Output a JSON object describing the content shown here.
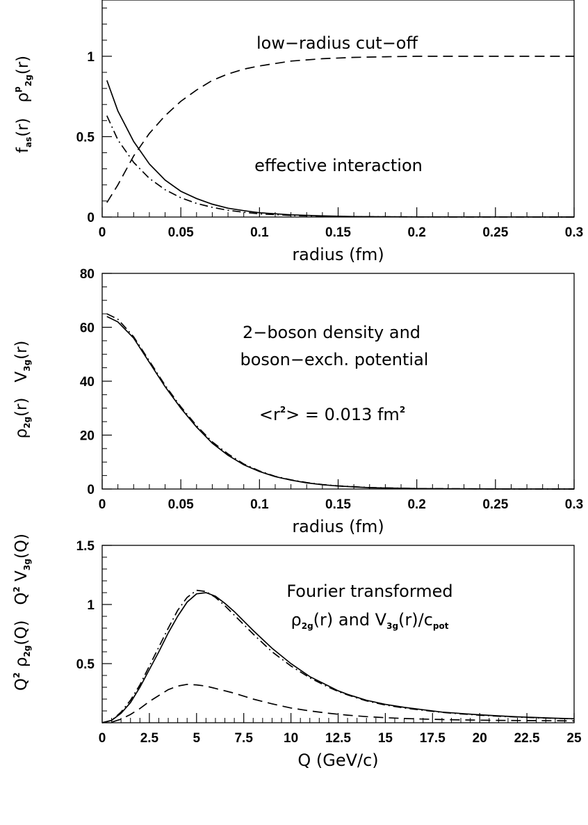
{
  "chart_data": [
    {
      "type": "line",
      "xlabel": "radius (fm)",
      "ylabel_parts": {
        "left": "f",
        "left_sub": "as",
        "left_arg": "(r)",
        "right": "ρ",
        "right_sup": "p",
        "right_sub": "2g",
        "right_arg": "(r)"
      },
      "xlim": [
        0,
        0.3
      ],
      "ylim": [
        0,
        1.35
      ],
      "xticks": [
        0,
        0.05,
        0.1,
        0.15,
        0.2,
        0.25,
        0.3
      ],
      "xtick_labels": [
        "0",
        "0.05",
        "0.1",
        "0.15",
        "0.2",
        "0.25",
        "0.3"
      ],
      "yticks": [
        0,
        0.5,
        1
      ],
      "ytick_labels": [
        "0",
        "0.5",
        "1"
      ],
      "annotations": [
        "low−radius cut−off",
        "effective interaction"
      ],
      "series": [
        {
          "style": "dashed",
          "points": [
            [
              0.003,
              0.09
            ],
            [
              0.01,
              0.2
            ],
            [
              0.02,
              0.38
            ],
            [
              0.03,
              0.52
            ],
            [
              0.04,
              0.63
            ],
            [
              0.05,
              0.72
            ],
            [
              0.06,
              0.79
            ],
            [
              0.07,
              0.85
            ],
            [
              0.08,
              0.89
            ],
            [
              0.09,
              0.92
            ],
            [
              0.1,
              0.94
            ],
            [
              0.12,
              0.97
            ],
            [
              0.14,
              0.985
            ],
            [
              0.16,
              0.993
            ],
            [
              0.18,
              0.997
            ],
            [
              0.2,
              1.0
            ],
            [
              0.25,
              1.0
            ],
            [
              0.3,
              1.0
            ]
          ]
        },
        {
          "style": "solid",
          "points": [
            [
              0.003,
              0.85
            ],
            [
              0.01,
              0.66
            ],
            [
              0.02,
              0.47
            ],
            [
              0.03,
              0.33
            ],
            [
              0.04,
              0.23
            ],
            [
              0.05,
              0.16
            ],
            [
              0.06,
              0.115
            ],
            [
              0.07,
              0.08
            ],
            [
              0.08,
              0.055
            ],
            [
              0.09,
              0.04
            ],
            [
              0.1,
              0.027
            ],
            [
              0.12,
              0.014
            ],
            [
              0.14,
              0.007
            ],
            [
              0.16,
              0.003
            ],
            [
              0.2,
              0.001
            ],
            [
              0.3,
              0.0
            ]
          ]
        },
        {
          "style": "dashdot",
          "points": [
            [
              0.003,
              0.63
            ],
            [
              0.01,
              0.48
            ],
            [
              0.02,
              0.34
            ],
            [
              0.03,
              0.24
            ],
            [
              0.04,
              0.17
            ],
            [
              0.05,
              0.12
            ],
            [
              0.06,
              0.085
            ],
            [
              0.07,
              0.06
            ],
            [
              0.08,
              0.042
            ],
            [
              0.09,
              0.03
            ],
            [
              0.1,
              0.02
            ],
            [
              0.12,
              0.01
            ],
            [
              0.14,
              0.005
            ],
            [
              0.16,
              0.002
            ],
            [
              0.2,
              0.001
            ],
            [
              0.3,
              0.0
            ]
          ]
        }
      ]
    },
    {
      "type": "line",
      "xlabel": "radius (fm)",
      "ylabel_parts": {
        "left": "ρ",
        "left_sub": "2g",
        "left_arg": "(r)",
        "right": "V",
        "right_sub": "3g",
        "right_arg": "(r)"
      },
      "xlim": [
        0,
        0.3
      ],
      "ylim": [
        0,
        80
      ],
      "xticks": [
        0,
        0.05,
        0.1,
        0.15,
        0.2,
        0.25,
        0.3
      ],
      "xtick_labels": [
        "0",
        "0.05",
        "0.1",
        "0.15",
        "0.2",
        "0.25",
        "0.3"
      ],
      "yticks": [
        0,
        20,
        40,
        60,
        80
      ],
      "ytick_labels": [
        "0",
        "20",
        "40",
        "60",
        "80"
      ],
      "annotations": [
        "2−boson density and",
        "boson−exch. potential",
        "<r",
        "2",
        "> = 0.013 fm",
        "2"
      ],
      "series": [
        {
          "style": "solid",
          "points": [
            [
              0.003,
              64
            ],
            [
              0.01,
              62
            ],
            [
              0.02,
              56
            ],
            [
              0.03,
              47
            ],
            [
              0.04,
              38
            ],
            [
              0.05,
              30
            ],
            [
              0.06,
              23
            ],
            [
              0.07,
              17
            ],
            [
              0.08,
              12.5
            ],
            [
              0.09,
              9
            ],
            [
              0.1,
              6.5
            ],
            [
              0.11,
              4.6
            ],
            [
              0.12,
              3.3
            ],
            [
              0.13,
              2.3
            ],
            [
              0.14,
              1.6
            ],
            [
              0.15,
              1.1
            ],
            [
              0.17,
              0.5
            ],
            [
              0.2,
              0.15
            ],
            [
              0.25,
              0.02
            ],
            [
              0.3,
              0.0
            ]
          ]
        },
        {
          "style": "dashdot",
          "points": [
            [
              0.003,
              65
            ],
            [
              0.01,
              63
            ],
            [
              0.02,
              56.5
            ],
            [
              0.03,
              47.5
            ],
            [
              0.04,
              38.5
            ],
            [
              0.05,
              30.5
            ],
            [
              0.06,
              23.5
            ],
            [
              0.07,
              17.5
            ],
            [
              0.08,
              13
            ],
            [
              0.09,
              9.3
            ],
            [
              0.1,
              6.7
            ],
            [
              0.11,
              4.7
            ],
            [
              0.12,
              3.4
            ],
            [
              0.13,
              2.4
            ],
            [
              0.14,
              1.65
            ],
            [
              0.15,
              1.15
            ],
            [
              0.17,
              0.55
            ],
            [
              0.2,
              0.17
            ],
            [
              0.25,
              0.03
            ],
            [
              0.3,
              0.0
            ]
          ]
        }
      ]
    },
    {
      "type": "line",
      "xlabel": "Q (GeV/c)",
      "ylabel_parts": {
        "left_pre": "Q",
        "left_pre_sup": "2",
        "left": "ρ",
        "left_sub": "2g",
        "left_arg": "(Q)",
        "right_pre": "Q",
        "right_pre_sup": "2",
        "right": "V",
        "right_sub": "3g",
        "right_arg": "(Q)"
      },
      "xlim": [
        0,
        25
      ],
      "ylim": [
        0,
        1.5
      ],
      "xticks": [
        0,
        2.5,
        5,
        7.5,
        10,
        12.5,
        15,
        17.5,
        20,
        22.5,
        25
      ],
      "xtick_labels": [
        "0",
        "2.5",
        "5",
        "7.5",
        "10",
        "12.5",
        "15",
        "17.5",
        "20",
        "22.5",
        "25"
      ],
      "yticks": [
        0.5,
        1,
        1.5
      ],
      "ytick_labels": [
        "0.5",
        "1",
        "1.5"
      ],
      "annotations": [
        "Fourier transformed",
        "ρ",
        "2g",
        "(r) and V",
        "3g",
        "(r)/c",
        "pot"
      ],
      "series": [
        {
          "style": "solid",
          "points": [
            [
              0,
              0
            ],
            [
              0.5,
              0.02
            ],
            [
              1,
              0.08
            ],
            [
              1.5,
              0.17
            ],
            [
              2,
              0.3
            ],
            [
              2.5,
              0.45
            ],
            [
              3,
              0.6
            ],
            [
              3.5,
              0.76
            ],
            [
              4,
              0.9
            ],
            [
              4.5,
              1.02
            ],
            [
              5,
              1.09
            ],
            [
              5.5,
              1.1
            ],
            [
              6,
              1.07
            ],
            [
              6.5,
              1.01
            ],
            [
              7,
              0.94
            ],
            [
              7.5,
              0.86
            ],
            [
              8,
              0.78
            ],
            [
              9,
              0.63
            ],
            [
              10,
              0.5
            ],
            [
              11,
              0.39
            ],
            [
              12,
              0.31
            ],
            [
              12.5,
              0.27
            ],
            [
              13,
              0.24
            ],
            [
              14,
              0.19
            ],
            [
              15,
              0.155
            ],
            [
              16,
              0.13
            ],
            [
              17,
              0.11
            ],
            [
              18,
              0.09
            ],
            [
              19,
              0.078
            ],
            [
              20,
              0.067
            ],
            [
              21,
              0.058
            ],
            [
              22,
              0.05
            ],
            [
              23,
              0.044
            ],
            [
              24,
              0.038
            ],
            [
              25,
              0.034
            ]
          ]
        },
        {
          "style": "dashdot",
          "points": [
            [
              0,
              0
            ],
            [
              0.5,
              0.02
            ],
            [
              1,
              0.09
            ],
            [
              1.5,
              0.19
            ],
            [
              2,
              0.32
            ],
            [
              2.5,
              0.48
            ],
            [
              3,
              0.64
            ],
            [
              3.5,
              0.8
            ],
            [
              4,
              0.95
            ],
            [
              4.5,
              1.06
            ],
            [
              5,
              1.12
            ],
            [
              5.5,
              1.11
            ],
            [
              6,
              1.06
            ],
            [
              6.5,
              0.99
            ],
            [
              7,
              0.91
            ],
            [
              7.5,
              0.83
            ],
            [
              8,
              0.75
            ],
            [
              9,
              0.6
            ],
            [
              10,
              0.48
            ],
            [
              11,
              0.38
            ],
            [
              12,
              0.3
            ],
            [
              12.5,
              0.265
            ],
            [
              13,
              0.235
            ],
            [
              14,
              0.185
            ],
            [
              15,
              0.15
            ],
            [
              16,
              0.125
            ],
            [
              17,
              0.105
            ],
            [
              18,
              0.088
            ],
            [
              19,
              0.075
            ],
            [
              20,
              0.064
            ],
            [
              21,
              0.055
            ],
            [
              22,
              0.048
            ],
            [
              23,
              0.042
            ],
            [
              24,
              0.037
            ],
            [
              25,
              0.033
            ]
          ]
        },
        {
          "style": "dashed",
          "points": [
            [
              0.5,
              0.005
            ],
            [
              1,
              0.03
            ],
            [
              1.5,
              0.07
            ],
            [
              2,
              0.12
            ],
            [
              2.5,
              0.18
            ],
            [
              3,
              0.23
            ],
            [
              3.5,
              0.28
            ],
            [
              4,
              0.31
            ],
            [
              4.5,
              0.325
            ],
            [
              5,
              0.32
            ],
            [
              5.5,
              0.31
            ],
            [
              6,
              0.29
            ],
            [
              7,
              0.25
            ],
            [
              8,
              0.2
            ],
            [
              9,
              0.16
            ],
            [
              10,
              0.125
            ],
            [
              11,
              0.1
            ],
            [
              12,
              0.08
            ],
            [
              13,
              0.064
            ],
            [
              14,
              0.052
            ],
            [
              15,
              0.043
            ],
            [
              16,
              0.036
            ],
            [
              17,
              0.031
            ],
            [
              18,
              0.027
            ],
            [
              19,
              0.024
            ],
            [
              20,
              0.022
            ],
            [
              21,
              0.02
            ],
            [
              22,
              0.019
            ],
            [
              23,
              0.018
            ],
            [
              24,
              0.017
            ],
            [
              25,
              0.016
            ]
          ]
        }
      ]
    }
  ]
}
